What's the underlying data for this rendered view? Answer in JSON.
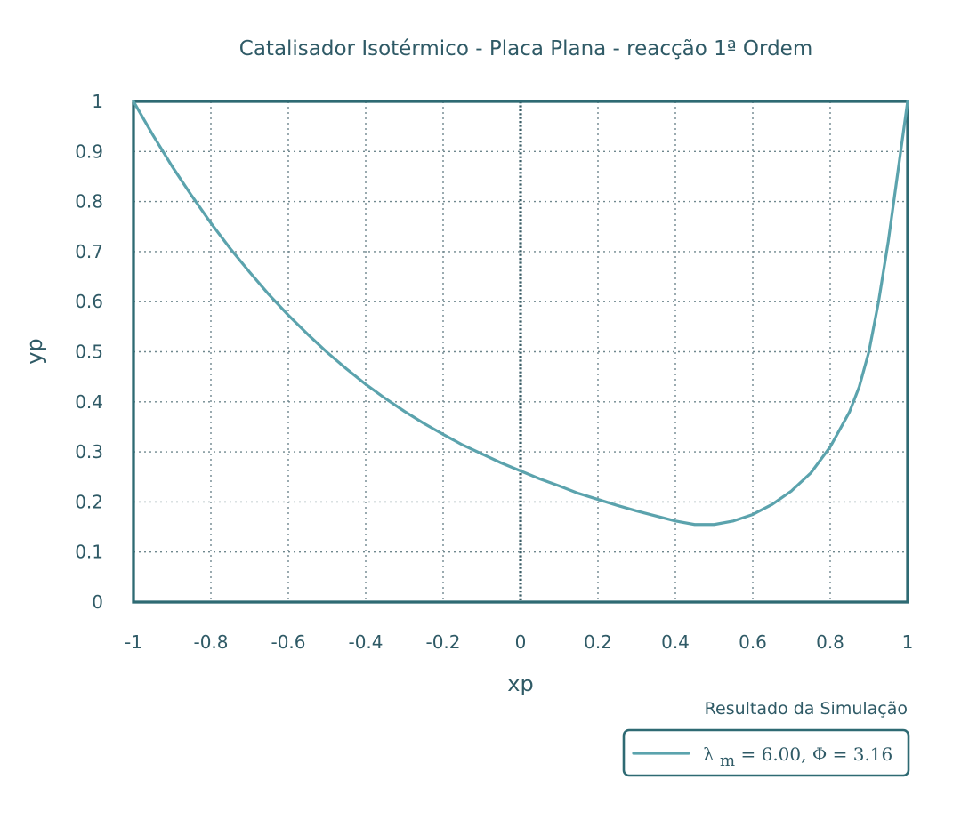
{
  "chart_data": {
    "type": "line",
    "title": "Catalisador Isotérmico - Placa Plana - reacção 1ª Ordem",
    "xlabel": "xp",
    "ylabel": "yp",
    "xlim": [
      -1,
      1
    ],
    "ylim": [
      0,
      1
    ],
    "grid": true,
    "x_ticks": [
      "-1",
      "-0.8",
      "-0.6",
      "-0.4",
      "-0.2",
      "0",
      "0.2",
      "0.4",
      "0.6",
      "0.8",
      "1"
    ],
    "y_ticks": [
      "0",
      "0.1",
      "0.2",
      "0.3",
      "0.4",
      "0.5",
      "0.6",
      "0.7",
      "0.8",
      "0.9",
      "1"
    ],
    "legend": {
      "title": "Resultado da Simulação",
      "placement": "bottom-right"
    },
    "series": [
      {
        "label_parts": {
          "symbol": "λ",
          "subscript": "m",
          "text": " = 6.00, Φ = 3.16"
        },
        "color": "#5ba3ad",
        "x": [
          -1,
          -0.95,
          -0.9,
          -0.85,
          -0.8,
          -0.75,
          -0.7,
          -0.65,
          -0.6,
          -0.55,
          -0.5,
          -0.45,
          -0.4,
          -0.35,
          -0.3,
          -0.25,
          -0.2,
          -0.15,
          -0.1,
          -0.05,
          0,
          0.05,
          0.1,
          0.15,
          0.2,
          0.25,
          0.3,
          0.35,
          0.4,
          0.45,
          0.5,
          0.55,
          0.6,
          0.65,
          0.7,
          0.75,
          0.8,
          0.85,
          0.875,
          0.9,
          0.925,
          0.95,
          0.975,
          1
        ],
        "y": [
          1,
          0.933,
          0.87,
          0.812,
          0.757,
          0.706,
          0.659,
          0.614,
          0.573,
          0.535,
          0.499,
          0.466,
          0.435,
          0.407,
          0.381,
          0.357,
          0.335,
          0.314,
          0.296,
          0.278,
          0.262,
          0.246,
          0.232,
          0.217,
          0.205,
          0.193,
          0.182,
          0.172,
          0.162,
          0.155,
          0.155,
          0.162,
          0.175,
          0.195,
          0.222,
          0.258,
          0.31,
          0.38,
          0.43,
          0.5,
          0.6,
          0.72,
          0.86,
          1
        ]
      }
    ]
  }
}
